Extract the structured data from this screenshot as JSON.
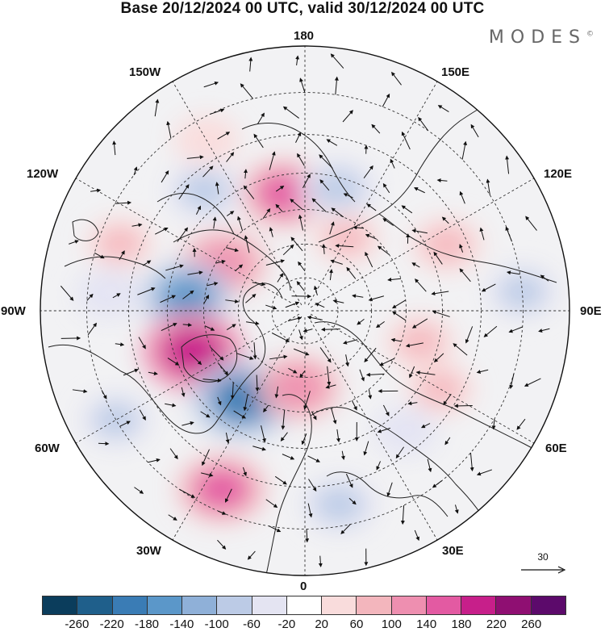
{
  "title": "Base 20/12/2024 00 UTC, valid 30/12/2024 00 UTC",
  "brand": {
    "name": "MODES",
    "mark": "©"
  },
  "longitude_labels": {
    "top": "180",
    "bottom": "0",
    "left": "90W",
    "right": "90E",
    "upper_left_outer": "150W",
    "upper_left_inner": "120W",
    "upper_right_outer": "150E",
    "upper_right_inner": "120E",
    "lower_left_outer": "60W",
    "lower_left_inner": "30W",
    "lower_right_outer": "60E",
    "lower_right_inner": "30E"
  },
  "reference_vector": {
    "label": "30"
  },
  "colorbar": {
    "colors": [
      "#0b3d5c",
      "#1f5f8b",
      "#3a7cb5",
      "#5b97c9",
      "#8fb0d8",
      "#bccbe6",
      "#e4e4f2",
      "#ffffff",
      "#f9dcdc",
      "#f3b6bd",
      "#ee8fb0",
      "#e35aa2",
      "#c71f8a",
      "#8f0f72",
      "#5c0a6b"
    ],
    "ticks": [
      "-260",
      "-220",
      "-180",
      "-140",
      "-100",
      "-60",
      "-20",
      "20",
      "60",
      "100",
      "140",
      "180",
      "220",
      "260"
    ]
  },
  "anomaly_features": [
    {
      "lon": -170,
      "lat": 55,
      "value": 140
    },
    {
      "lon": 165,
      "lat": 53,
      "value": -100
    },
    {
      "lon": -120,
      "lat": 62,
      "value": 130
    },
    {
      "lon": -140,
      "lat": 45,
      "value": -90
    },
    {
      "lon": -97,
      "lat": 55,
      "value": -150
    },
    {
      "lon": -70,
      "lat": 55,
      "value": 200
    },
    {
      "lon": -35,
      "lat": 58,
      "value": -200
    },
    {
      "lon": -5,
      "lat": 67,
      "value": 120
    },
    {
      "lon": -25,
      "lat": 35,
      "value": 140
    },
    {
      "lon": -60,
      "lat": 30,
      "value": -70
    },
    {
      "lon": 115,
      "lat": 45,
      "value": 80
    },
    {
      "lon": 75,
      "lat": 55,
      "value": 70
    },
    {
      "lon": 60,
      "lat": 45,
      "value": 60
    },
    {
      "lon": 95,
      "lat": 30,
      "value": -70
    },
    {
      "lon": 10,
      "lat": 35,
      "value": -90
    },
    {
      "lon": -110,
      "lat": 35,
      "value": 60
    },
    {
      "lon": 40,
      "lat": 45,
      "value": -50
    },
    {
      "lon": -150,
      "lat": 35,
      "value": 50
    },
    {
      "lon": 150,
      "lat": 65,
      "value": 60
    },
    {
      "lon": -95,
      "lat": 35,
      "value": -60
    }
  ]
}
